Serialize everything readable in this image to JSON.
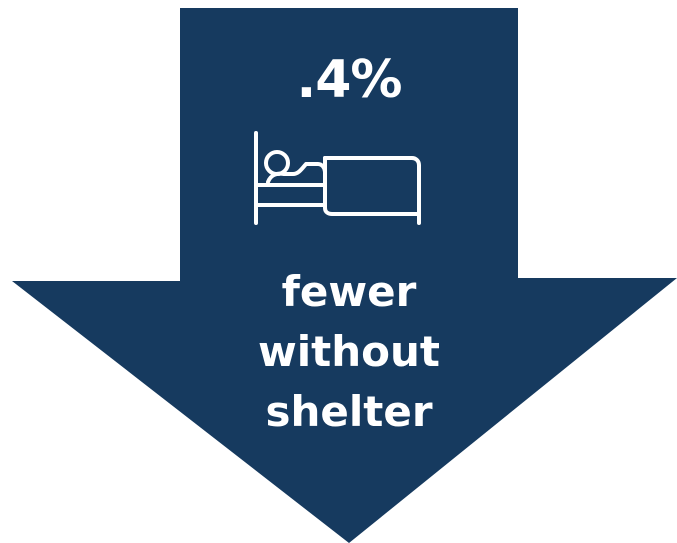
{
  "stat": {
    "value": ".4%",
    "caption_lines": [
      "fewer",
      "without",
      "shelter"
    ]
  },
  "icons": {
    "main": "bed-icon"
  },
  "colors": {
    "arrow": "#163a5f",
    "text": "#ffffff",
    "background": "#ffffff"
  }
}
